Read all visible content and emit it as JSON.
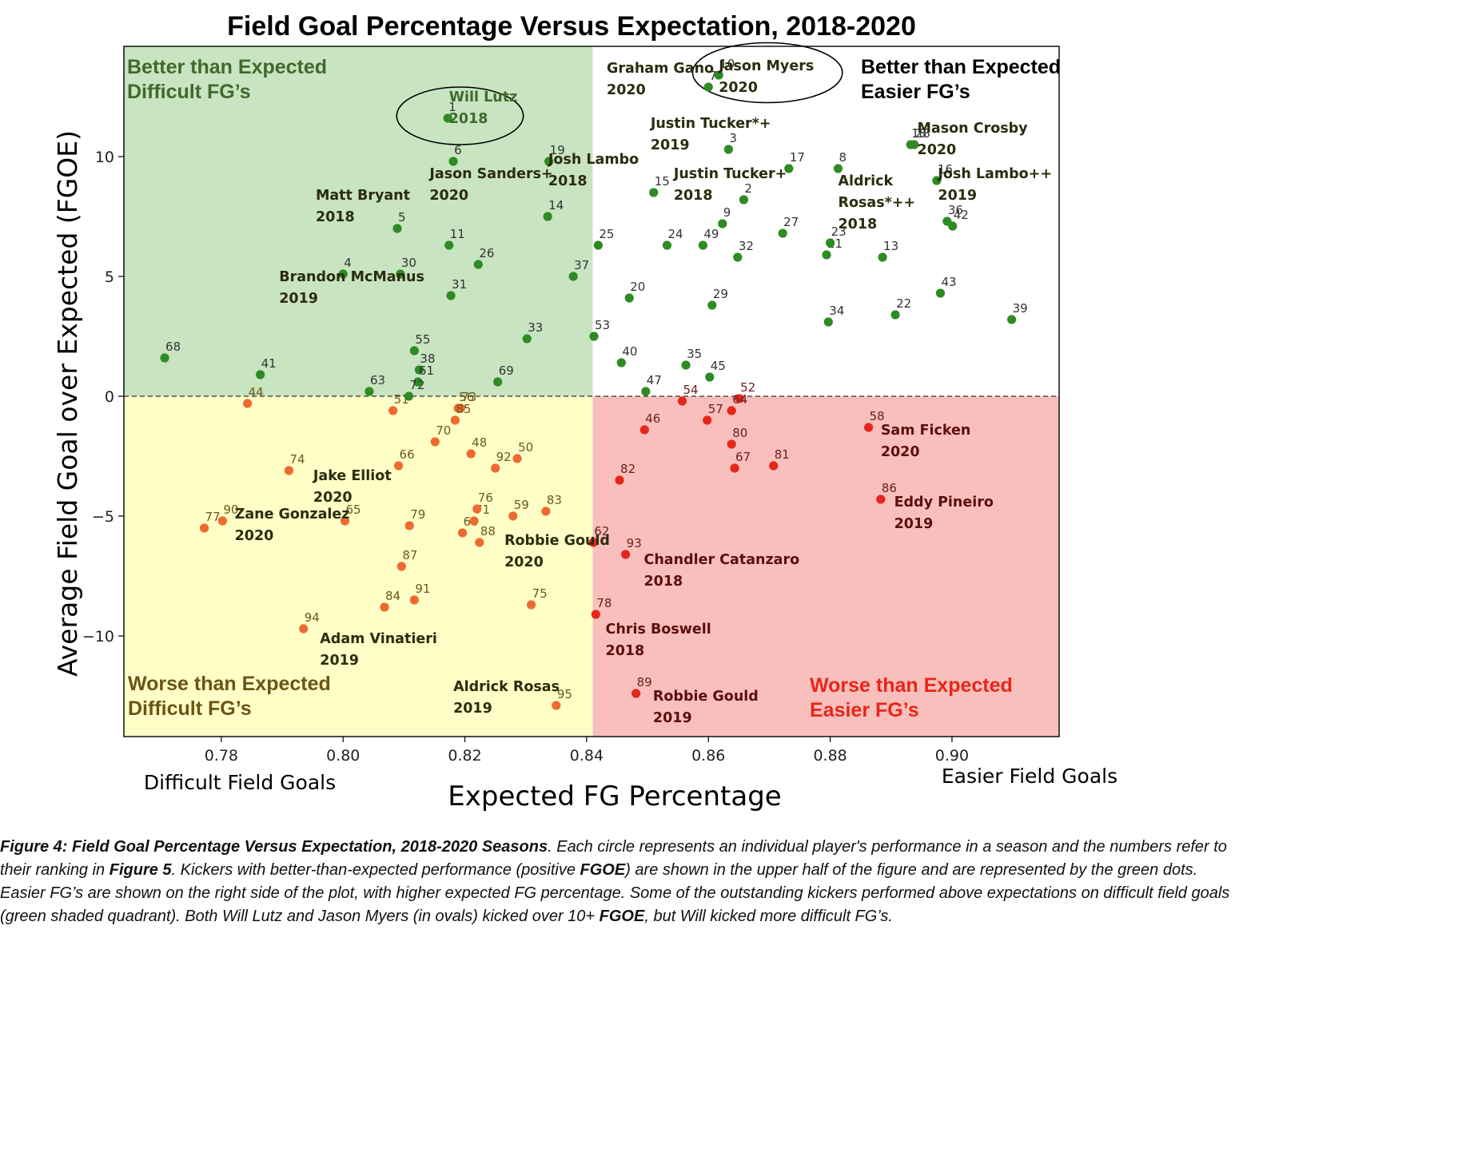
{
  "chart_data": {
    "type": "scatter",
    "title": "Field Goal Percentage Versus Expectation, 2018-2020",
    "xlabel": "Expected FG Percentage",
    "ylabel": "Average Field Goal over Expected (FGOE)",
    "x_axis_notes": {
      "left": "Difficult Field Goals",
      "right": "Easier Field Goals"
    },
    "xlim": [
      0.764,
      0.9176
    ],
    "ylim": [
      -14.2,
      14.6
    ],
    "xticks": [
      0.78,
      0.8,
      0.82,
      0.84,
      0.86,
      0.88,
      0.9
    ],
    "xtick_labels": [
      "0.78",
      "0.80",
      "0.82",
      "0.84",
      "0.86",
      "0.88",
      "0.90"
    ],
    "yticks": [
      -10,
      -5,
      0,
      5,
      10
    ],
    "ytick_labels": [
      "−10",
      "−5",
      "0",
      "5",
      "10"
    ],
    "quadrant_divider_x": 0.841,
    "zero_line": 0,
    "colors": {
      "positive_point": "#2e8b23",
      "negative_point_difficult": "#ef6a2f",
      "negative_point_easier": "#e5271b",
      "quad_top_left": "#c8e4c1",
      "quad_bottom_left": "#fefec6",
      "quad_bottom_right": "#f8bfbc",
      "quad_top_right": "#ffffff",
      "label_top_left": "#3f6a2c",
      "label_bottom_left": "#6b5414",
      "label_bottom_right": "#e8261a",
      "label_top_right": "#000000",
      "name_dark": "#2c2c0f",
      "name_red": "#5c0f0f"
    },
    "quadrant_labels": [
      {
        "lines": [
          "Better than Expected",
          "Difficult FG’s"
        ],
        "quadrant": "top-left"
      },
      {
        "lines": [
          "Better than Expected",
          "Easier FG’s"
        ],
        "quadrant": "top-right"
      },
      {
        "lines": [
          "Worse than Expected",
          "Difficult FG’s"
        ],
        "quadrant": "bottom-left"
      },
      {
        "lines": [
          "Worse than Expected",
          "Easier FG’s"
        ],
        "quadrant": "bottom-right"
      }
    ],
    "points": [
      {
        "r": "1",
        "x": 0.8172,
        "y": 11.6
      },
      {
        "r": "2",
        "x": 0.8658,
        "y": 8.2
      },
      {
        "r": "3",
        "x": 0.8633,
        "y": 10.3
      },
      {
        "r": "4",
        "x": 0.8,
        "y": 5.1
      },
      {
        "r": "5",
        "x": 0.8089,
        "y": 7.0
      },
      {
        "r": "6",
        "x": 0.8181,
        "y": 9.8
      },
      {
        "r": "7",
        "x": 0.86,
        "y": 12.9
      },
      {
        "r": "8",
        "x": 0.8813,
        "y": 9.5
      },
      {
        "r": "9",
        "x": 0.8623,
        "y": 7.2
      },
      {
        "r": "10",
        "x": 0.8617,
        "y": 13.4
      },
      {
        "r": "11",
        "x": 0.8174,
        "y": 6.3
      },
      {
        "r": "13",
        "x": 0.8886,
        "y": 5.8
      },
      {
        "r": "14",
        "x": 0.8336,
        "y": 7.5
      },
      {
        "r": "15",
        "x": 0.851,
        "y": 8.5
      },
      {
        "r": "16",
        "x": 0.8975,
        "y": 9.0
      },
      {
        "r": "17",
        "x": 0.8732,
        "y": 9.5
      },
      {
        "r": "18",
        "x": 0.8932,
        "y": 10.5
      },
      {
        "r": "19",
        "x": 0.8338,
        "y": 9.8
      },
      {
        "r": "20",
        "x": 0.847,
        "y": 4.1
      },
      {
        "r": "21",
        "x": 0.8794,
        "y": 5.9
      },
      {
        "r": "22",
        "x": 0.8907,
        "y": 3.4
      },
      {
        "r": "23",
        "x": 0.88,
        "y": 6.4
      },
      {
        "r": "24",
        "x": 0.8532,
        "y": 6.3
      },
      {
        "r": "25",
        "x": 0.8419,
        "y": 6.3
      },
      {
        "r": "26",
        "x": 0.8222,
        "y": 5.5
      },
      {
        "r": "27",
        "x": 0.8722,
        "y": 6.8
      },
      {
        "r": "28",
        "x": 0.8938,
        "y": 10.5
      },
      {
        "r": "29",
        "x": 0.8606,
        "y": 3.8
      },
      {
        "r": "30",
        "x": 0.8094,
        "y": 5.1
      },
      {
        "r": "31",
        "x": 0.8177,
        "y": 4.2
      },
      {
        "r": "32",
        "x": 0.8648,
        "y": 5.8
      },
      {
        "r": "33",
        "x": 0.8302,
        "y": 2.4
      },
      {
        "r": "34",
        "x": 0.8797,
        "y": 3.1
      },
      {
        "r": "35",
        "x": 0.8563,
        "y": 1.3
      },
      {
        "r": "36",
        "x": 0.8992,
        "y": 7.3
      },
      {
        "r": "37",
        "x": 0.8378,
        "y": 5.0
      },
      {
        "r": "38",
        "x": 0.8125,
        "y": 1.1
      },
      {
        "r": "39",
        "x": 0.9098,
        "y": 3.2
      },
      {
        "r": "40",
        "x": 0.8457,
        "y": 1.4
      },
      {
        "r": "41",
        "x": 0.7864,
        "y": 0.9
      },
      {
        "r": "42",
        "x": 0.9001,
        "y": 7.1
      },
      {
        "r": "43",
        "x": 0.8981,
        "y": 4.3
      },
      {
        "r": "45",
        "x": 0.8602,
        "y": 0.8
      },
      {
        "r": "47",
        "x": 0.8497,
        "y": 0.2
      },
      {
        "r": "49",
        "x": 0.8591,
        "y": 6.3
      },
      {
        "r": "53",
        "x": 0.8412,
        "y": 2.5
      },
      {
        "r": "55",
        "x": 0.8117,
        "y": 1.9
      },
      {
        "r": "61",
        "x": 0.8123,
        "y": 0.6
      },
      {
        "r": "63",
        "x": 0.8043,
        "y": 0.2
      },
      {
        "r": "68",
        "x": 0.7707,
        "y": 1.6
      },
      {
        "r": "69",
        "x": 0.8254,
        "y": 0.6
      },
      {
        "r": "44",
        "x": 0.7843,
        "y": -0.3
      },
      {
        "r": "46",
        "x": 0.8495,
        "y": -1.4
      },
      {
        "r": "48",
        "x": 0.821,
        "y": -2.4
      },
      {
        "r": "50",
        "x": 0.8286,
        "y": -2.6
      },
      {
        "r": "51",
        "x": 0.8082,
        "y": -0.6
      },
      {
        "r": "52",
        "x": 0.8651,
        "y": -0.1
      },
      {
        "r": "54",
        "x": 0.8557,
        "y": -0.2
      },
      {
        "r": "56",
        "x": 0.8189,
        "y": -0.5
      },
      {
        "r": "57",
        "x": 0.8598,
        "y": -1.0
      },
      {
        "r": "58",
        "x": 0.8863,
        "y": -1.3
      },
      {
        "r": "59",
        "x": 0.8279,
        "y": -5.0
      },
      {
        "r": "60",
        "x": 0.8196,
        "y": -5.7
      },
      {
        "r": "62",
        "x": 0.8411,
        "y": -6.1
      },
      {
        "r": "64",
        "x": 0.8638,
        "y": -0.6
      },
      {
        "r": "65",
        "x": 0.8003,
        "y": -5.2
      },
      {
        "r": "66",
        "x": 0.8091,
        "y": -2.9
      },
      {
        "r": "67",
        "x": 0.8643,
        "y": -3.0
      },
      {
        "r": "70",
        "x": 0.8151,
        "y": -1.9
      },
      {
        "r": "71",
        "x": 0.8215,
        "y": -5.2
      },
      {
        "r": "72",
        "x": 0.8108,
        "y": 0.0
      },
      {
        "r": "73",
        "x": 0.8193,
        "y": -0.5
      },
      {
        "r": "74",
        "x": 0.7911,
        "y": -3.1
      },
      {
        "r": "75",
        "x": 0.8309,
        "y": -8.7
      },
      {
        "r": "76",
        "x": 0.822,
        "y": -4.7
      },
      {
        "r": "77",
        "x": 0.7772,
        "y": -5.5
      },
      {
        "r": "78",
        "x": 0.8415,
        "y": -9.1
      },
      {
        "r": "79",
        "x": 0.8109,
        "y": -5.4
      },
      {
        "r": "80",
        "x": 0.8638,
        "y": -2.0
      },
      {
        "r": "81",
        "x": 0.8707,
        "y": -2.9
      },
      {
        "r": "82",
        "x": 0.8454,
        "y": -3.5
      },
      {
        "r": "83",
        "x": 0.8333,
        "y": -4.8
      },
      {
        "r": "84",
        "x": 0.8068,
        "y": -8.8
      },
      {
        "r": "85",
        "x": 0.8184,
        "y": -1.0
      },
      {
        "r": "86",
        "x": 0.8883,
        "y": -4.3
      },
      {
        "r": "87",
        "x": 0.8096,
        "y": -7.1
      },
      {
        "r": "88",
        "x": 0.8224,
        "y": -6.1
      },
      {
        "r": "89",
        "x": 0.8481,
        "y": -12.4
      },
      {
        "r": "90",
        "x": 0.7802,
        "y": -5.2
      },
      {
        "r": "91",
        "x": 0.8117,
        "y": -8.5
      },
      {
        "r": "92",
        "x": 0.825,
        "y": -3.0
      },
      {
        "r": "93",
        "x": 0.8464,
        "y": -6.6
      },
      {
        "r": "94",
        "x": 0.7935,
        "y": -9.7
      },
      {
        "r": "95",
        "x": 0.835,
        "y": -12.9
      }
    ],
    "player_labels": [
      {
        "lines": [
          "Will Lutz",
          "2018"
        ],
        "x": 0.8174,
        "y": 12.3,
        "tone": "light"
      },
      {
        "lines": [
          "Graham Gano",
          "2020"
        ],
        "x": 0.8433,
        "y": 13.5,
        "tone": "dark"
      },
      {
        "lines": [
          "Jason Myers",
          "2020"
        ],
        "x": 0.8617,
        "y": 13.6,
        "tone": "dark"
      },
      {
        "lines": [
          "Justin Tucker*+",
          "2019"
        ],
        "x": 0.8505,
        "y": 11.2,
        "tone": "dark"
      },
      {
        "lines": [
          "Mason Crosby",
          "2020"
        ],
        "x": 0.8943,
        "y": 11.0,
        "tone": "dark"
      },
      {
        "lines": [
          "Justin Tucker+",
          "2018"
        ],
        "x": 0.8543,
        "y": 9.1,
        "tone": "dark"
      },
      {
        "lines": [
          "Josh Lambo",
          "2018"
        ],
        "x": 0.8337,
        "y": 9.7,
        "tone": "dark"
      },
      {
        "lines": [
          "Jason Sanders+",
          "2020"
        ],
        "x": 0.8142,
        "y": 9.1,
        "tone": "dark"
      },
      {
        "lines": [
          "Aldrick",
          "Rosas*++",
          "2018"
        ],
        "x": 0.8813,
        "y": 8.8,
        "tone": "dark"
      },
      {
        "lines": [
          "Josh Lambo++",
          "2019"
        ],
        "x": 0.8977,
        "y": 9.1,
        "tone": "dark"
      },
      {
        "lines": [
          "Matt Bryant",
          "2018"
        ],
        "x": 0.7955,
        "y": 8.2,
        "tone": "dark"
      },
      {
        "lines": [
          "Brandon McManus",
          "2019"
        ],
        "x": 0.7895,
        "y": 4.8,
        "tone": "dark"
      },
      {
        "lines": [
          "Jake Elliot",
          "2020"
        ],
        "x": 0.7951,
        "y": -3.5,
        "tone": "dark"
      },
      {
        "lines": [
          "Zane Gonzalez",
          "2020"
        ],
        "x": 0.7822,
        "y": -5.1,
        "tone": "dark"
      },
      {
        "lines": [
          "Robbie Gould",
          "2020"
        ],
        "x": 0.8265,
        "y": -6.2,
        "tone": "dark"
      },
      {
        "lines": [
          "Chandler Catanzaro",
          "2018"
        ],
        "x": 0.8494,
        "y": -7.0,
        "tone": "red"
      },
      {
        "lines": [
          "Chris Boswell",
          "2018"
        ],
        "x": 0.8431,
        "y": -9.9,
        "tone": "red"
      },
      {
        "lines": [
          "Robbie Gould",
          "2019"
        ],
        "x": 0.8509,
        "y": -12.7,
        "tone": "red"
      },
      {
        "lines": [
          "Adam Vinatieri",
          "2019"
        ],
        "x": 0.7962,
        "y": -10.3,
        "tone": "dark"
      },
      {
        "lines": [
          "Aldrick Rosas",
          "2019"
        ],
        "x": 0.8181,
        "y": -12.3,
        "tone": "dark"
      },
      {
        "lines": [
          "Sam Ficken",
          "2020"
        ],
        "x": 0.8883,
        "y": -1.6,
        "tone": "red"
      },
      {
        "lines": [
          "Eddy Pineiro",
          "2019"
        ],
        "x": 0.8905,
        "y": -4.6,
        "tone": "red"
      }
    ],
    "ovals": [
      {
        "cx": 0.8192,
        "cy": 11.7,
        "rx": 0.0104,
        "ry": 1.2
      },
      {
        "cx": 0.8697,
        "cy": 13.5,
        "rx": 0.0123,
        "ry": 1.25
      }
    ],
    "grid": false,
    "legend": "none"
  },
  "caption": {
    "label": "Figure 4: Field Goal Percentage Versus Expectation, 2018-2020 Seasons",
    "t1": ". Each circle represents an individual player's performance in a season and the numbers refer to their ranking in ",
    "ref": "Figure 5",
    "t2": ". Kickers with better-than-expected performance (positive ",
    "term1": "FGOE",
    "t3": ") are shown in the upper half of the figure and are represented by the green dots. Easier FG’s are shown on the right side of the plot, with higher expected FG percentage. Some of the outstanding kickers performed above expectations on difficult field goals (green shaded quadrant). Both Will Lutz and Jason Myers (in ovals) kicked over 10+ ",
    "term2": "FGOE",
    "t4": ", but Will kicked more difficult FG’s."
  }
}
